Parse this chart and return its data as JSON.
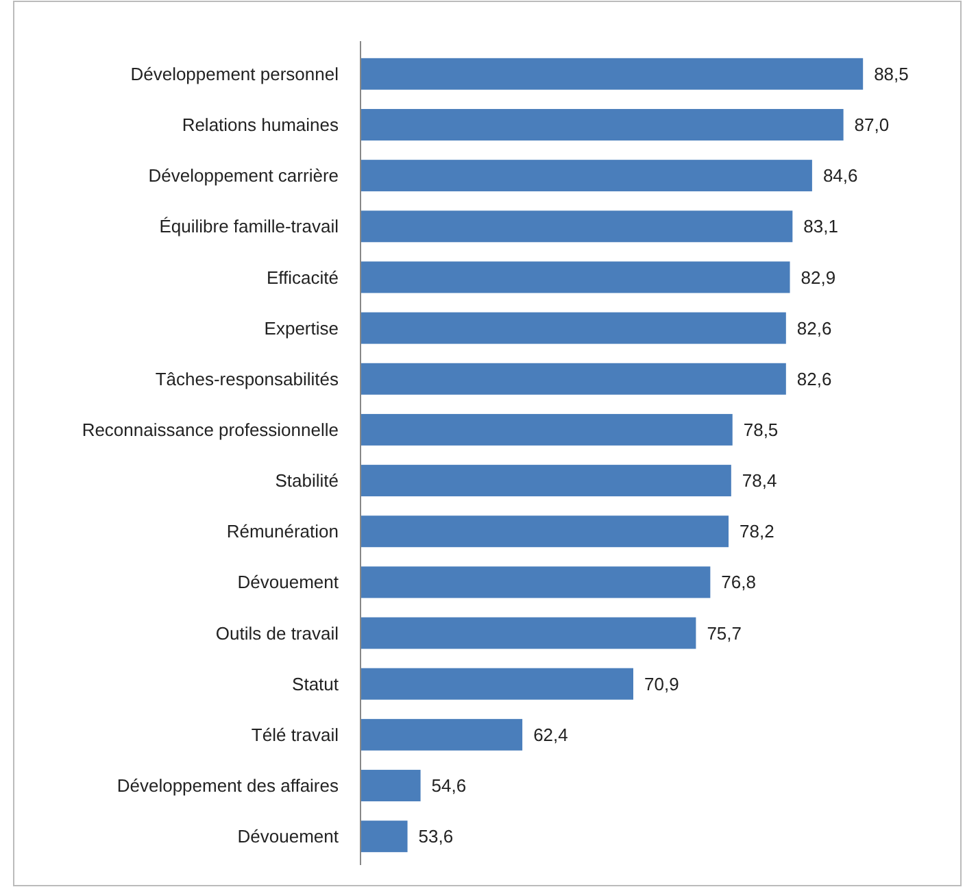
{
  "chart_data": {
    "type": "bar",
    "orientation": "horizontal",
    "categories": [
      "Développement personnel",
      "Relations humaines",
      "Développement carrière",
      "Équilibre famille-travail",
      "Efficacité",
      "Expertise",
      "Tâches-responsabilités",
      "Reconnaissance professionnelle",
      "Stabilité",
      "Rémunération",
      "Dévouement",
      "Outils de travail",
      "Statut",
      "Télé travail",
      "Développement des affaires",
      "Dévouement"
    ],
    "values": [
      88.5,
      87.0,
      84.6,
      83.1,
      82.9,
      82.6,
      82.6,
      78.5,
      78.4,
      78.2,
      76.8,
      75.7,
      70.9,
      62.4,
      54.6,
      53.6
    ],
    "value_labels": [
      "88,5",
      "87,0",
      "84,6",
      "83,1",
      "82,9",
      "82,6",
      "82,6",
      "78,5",
      "78,4",
      "78,2",
      "76,8",
      "75,7",
      "70,9",
      "62,4",
      "54,6",
      "53,6"
    ],
    "color": "#4a7ebb",
    "xlim": [
      50,
      96
    ],
    "tick_labels": "y"
  }
}
